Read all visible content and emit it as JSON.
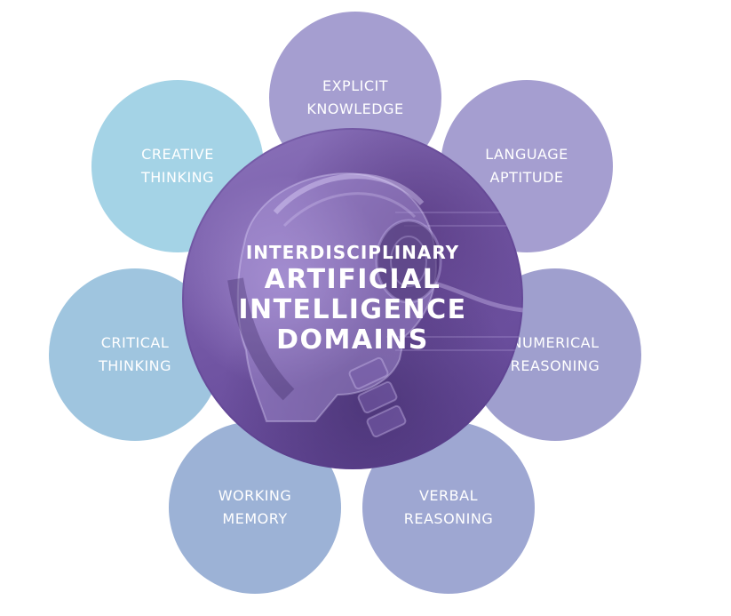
{
  "diagram": {
    "center": {
      "line1": "INTERDISCIPLINARY",
      "line2": "ARTIFICIAL",
      "line3": "INTELLIGENCE",
      "line4": "DOMAINS"
    },
    "petals": [
      {
        "id": "explicit-knowledge",
        "line1": "EXPLICIT",
        "line2": "KNOWLEDGE",
        "color": "#a59ed0"
      },
      {
        "id": "language-aptitude",
        "line1": "LANGUAGE",
        "line2": "APTITUDE",
        "color": "#a59ed0"
      },
      {
        "id": "numerical-reasoning",
        "line1": "NUMERICAL",
        "line2": "REASONING",
        "color": "#9f9fce"
      },
      {
        "id": "verbal-reasoning",
        "line1": "VERBAL",
        "line2": "REASONING",
        "color": "#9ea7d2"
      },
      {
        "id": "working-memory",
        "line1": "WORKING",
        "line2": "MEMORY",
        "color": "#9cb2d6"
      },
      {
        "id": "critical-thinking",
        "line1": "CRITICAL",
        "line2": "THINKING",
        "color": "#9fc5df"
      },
      {
        "id": "creative-thinking",
        "line1": "CREATIVE",
        "line2": "THINKING",
        "color": "#a4d3e6"
      }
    ]
  }
}
